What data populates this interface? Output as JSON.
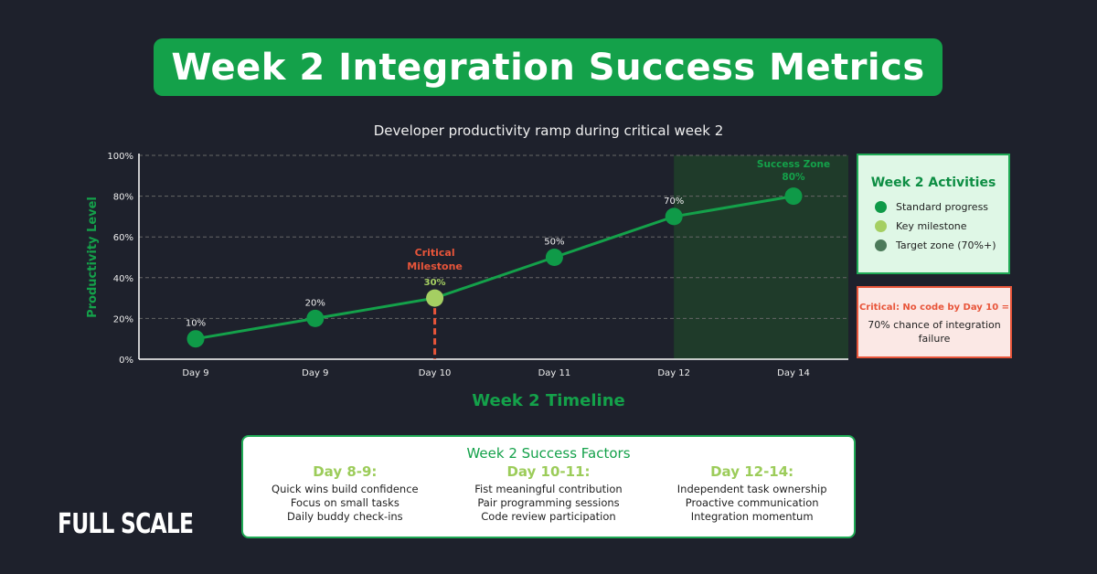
{
  "title": "Week 2 Integration Success Metrics",
  "chart_data": {
    "type": "line",
    "title": "Developer productivity ramp during critical week 2",
    "xlabel": "Week 2 Timeline",
    "ylabel": "Productivity Level",
    "categories": [
      "Day 9",
      "Day 9",
      "Day 10",
      "Day 11",
      "Day 12",
      "Day 14"
    ],
    "values": [
      10,
      20,
      30,
      50,
      70,
      80
    ],
    "data_labels": [
      "10%",
      "20%",
      "30%",
      "50%",
      "70%",
      "80%"
    ],
    "point_types": [
      "standard",
      "standard",
      "milestone",
      "standard",
      "standard",
      "standard"
    ],
    "ylim": [
      0,
      100
    ],
    "yticks": [
      "0%",
      "20%",
      "40%",
      "60%",
      "80%",
      "100%"
    ],
    "grid": true,
    "annotations": {
      "critical": [
        "Critical",
        "Milestone"
      ],
      "success_zone": "Success Zone"
    },
    "colors": {
      "line": "#14a14a",
      "standard": "#0f9a48",
      "milestone": "#a5cf62",
      "target": "#4c7a5a",
      "critical": "#e8553a",
      "zone": "#1f3b2a"
    }
  },
  "legend": {
    "title": "Week 2 Activities",
    "items": [
      {
        "label": "Standard progress",
        "color": "#0f9a48"
      },
      {
        "label": "Key milestone",
        "color": "#a5cf62"
      },
      {
        "label": "Target zone (70%+)",
        "color": "#4c7a5a"
      }
    ]
  },
  "critical_box": {
    "heading": "Critical: No code by Day 10 =",
    "body": "70% chance of integration failure"
  },
  "factors": {
    "title": "Week 2 Success Factors",
    "columns": [
      {
        "heading": "Day 8-9:",
        "items": [
          "Quick wins build confidence",
          "Focus on small tasks",
          "Daily buddy check-ins"
        ]
      },
      {
        "heading": "Day 10-11:",
        "items": [
          "Fist meaningful contribution",
          "Pair programming sessions",
          "Code review participation"
        ]
      },
      {
        "heading": "Day 12-14:",
        "items": [
          "Independent task ownership",
          "Proactive communication",
          "Integration momentum"
        ]
      }
    ]
  },
  "logo": "FULL SCALE"
}
